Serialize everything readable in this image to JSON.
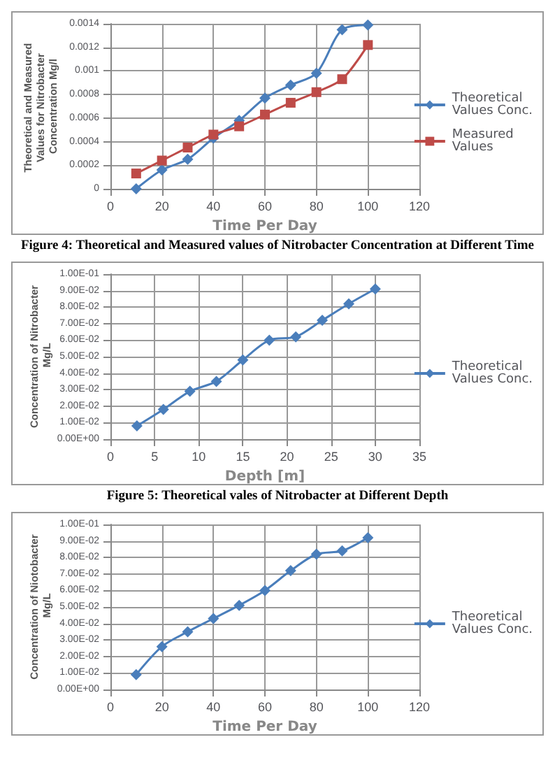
{
  "chart_data": [
    {
      "type": "line",
      "ylabel": "Theoretical and Measured Values for Nitrobacter Concentration Mg/l",
      "xlabel": "Time Per Day",
      "x": [
        10,
        20,
        30,
        40,
        50,
        60,
        70,
        80,
        90,
        100
      ],
      "series": [
        {
          "name": "Theoretical Values Conc.",
          "color": "#4a7ebb",
          "marker": "diamond",
          "values": [
            0,
            0.00016,
            0.00025,
            0.00043,
            0.00058,
            0.00077,
            0.00088,
            0.00098,
            0.00135,
            0.00139
          ]
        },
        {
          "name": "Measured Values",
          "color": "#be4b48",
          "marker": "square",
          "values": [
            0.00013,
            0.00024,
            0.00035,
            0.00046,
            0.00053,
            0.00063,
            0.00073,
            0.00082,
            0.00093,
            0.00122
          ]
        }
      ],
      "xlim": [
        0,
        120
      ],
      "xticks": [
        0,
        20,
        40,
        60,
        80,
        100,
        120
      ],
      "ylim": [
        0,
        0.0014
      ],
      "yticks": [
        0,
        0.0002,
        0.0004,
        0.0006,
        0.0008,
        0.001,
        0.0012,
        0.0014
      ],
      "grid": true,
      "legend": "right",
      "annotations": [
        "Figure 4: Theoretical and Measured values of Nitrobacter Concentration at Different Time"
      ]
    },
    {
      "type": "line",
      "ylabel": "Concentration of Nitrobacter Mg/L",
      "xlabel": "Depth [m]",
      "x": [
        3,
        6,
        9,
        12,
        15,
        18,
        21,
        24,
        27,
        30
      ],
      "series": [
        {
          "name": "Theoretical Values Conc.",
          "color": "#4a7ebb",
          "marker": "diamond",
          "values": [
            0.008,
            0.018,
            0.029,
            0.035,
            0.048,
            0.06,
            0.062,
            0.072,
            0.082,
            0.091
          ]
        }
      ],
      "xlim": [
        0,
        35
      ],
      "xticks": [
        0,
        5,
        10,
        15,
        20,
        25,
        30,
        35
      ],
      "ylim": [
        0,
        0.1
      ],
      "yticks": [
        {
          "value": 0,
          "label": "0.00E+00"
        },
        {
          "value": 0.01,
          "label": "1.00E-02"
        },
        {
          "value": 0.02,
          "label": "2.00E-02"
        },
        {
          "value": 0.03,
          "label": "3.00E-02"
        },
        {
          "value": 0.04,
          "label": "4.00E-02"
        },
        {
          "value": 0.05,
          "label": "5.00E-02"
        },
        {
          "value": 0.06,
          "label": "6.00E-02"
        },
        {
          "value": 0.07,
          "label": "7.00E-02"
        },
        {
          "value": 0.08,
          "label": "8.00E-02"
        },
        {
          "value": 0.09,
          "label": "9.00E-02"
        },
        {
          "value": 0.1,
          "label": "1.00E-01"
        }
      ],
      "grid": true,
      "legend": "right",
      "annotations": [
        "Figure 5: Theoretical vales of Nitrobacter at Different Depth"
      ]
    },
    {
      "type": "line",
      "ylabel": "Concentration of Niotobacter Mg/L",
      "xlabel": "Time Per Day",
      "x": [
        10,
        20,
        30,
        40,
        50,
        60,
        70,
        80,
        90,
        100
      ],
      "series": [
        {
          "name": "Theoretical Values Conc.",
          "color": "#4a7ebb",
          "marker": "diamond",
          "values": [
            0.009,
            0.026,
            0.035,
            0.043,
            0.051,
            0.06,
            0.072,
            0.082,
            0.084,
            0.092
          ]
        }
      ],
      "xlim": [
        0,
        120
      ],
      "xticks": [
        0,
        20,
        40,
        60,
        80,
        100,
        120
      ],
      "ylim": [
        0,
        0.1
      ],
      "yticks": [
        {
          "value": 0,
          "label": "0.00E+00"
        },
        {
          "value": 0.01,
          "label": "1.00E-02"
        },
        {
          "value": 0.02,
          "label": "2.00E-02"
        },
        {
          "value": 0.03,
          "label": "3.00E-02"
        },
        {
          "value": 0.04,
          "label": "4.00E-02"
        },
        {
          "value": 0.05,
          "label": "5.00E-02"
        },
        {
          "value": 0.06,
          "label": "6.00E-02"
        },
        {
          "value": 0.07,
          "label": "7.00E-02"
        },
        {
          "value": 0.08,
          "label": "8.00E-02"
        },
        {
          "value": 0.09,
          "label": "9.00E-02"
        },
        {
          "value": 0.1,
          "label": "1.00E-01"
        }
      ],
      "grid": true,
      "legend": "right"
    }
  ]
}
